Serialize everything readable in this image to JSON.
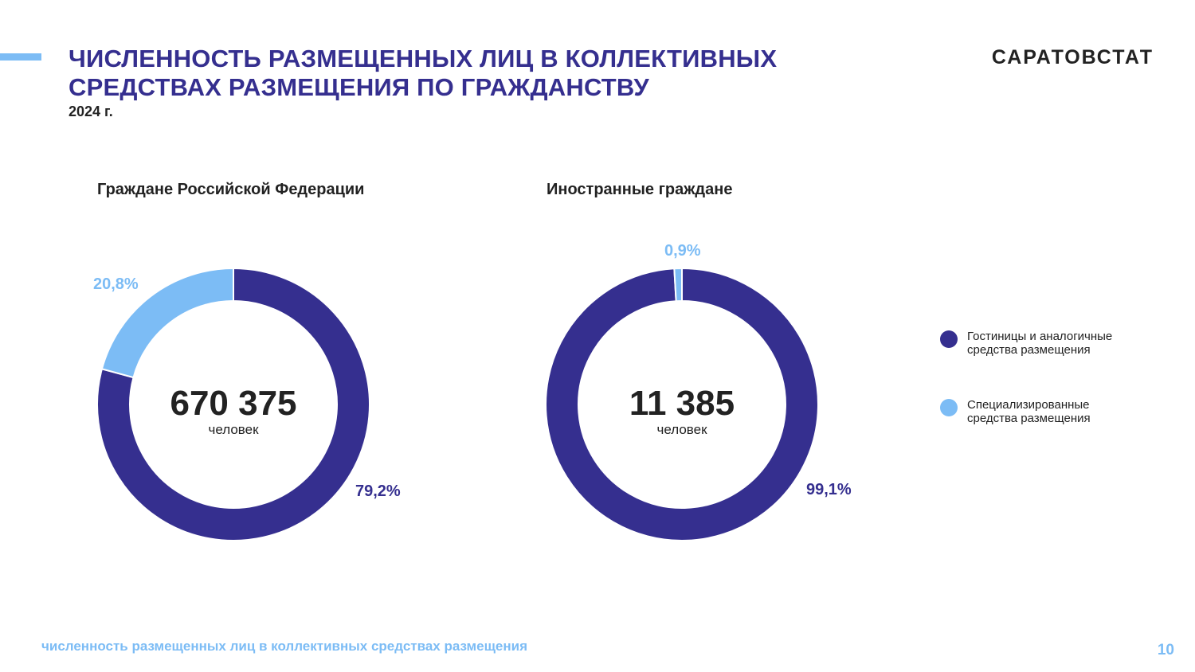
{
  "header": {
    "title_line1": "ЧИСЛЕННОСТЬ РАЗМЕЩЕННЫХ ЛИЦ В КОЛЛЕКТИВНЫХ",
    "title_line2": "СРЕДСТВАХ РАЗМЕЩЕНИЯ ПО ГРАЖДАНСТВУ",
    "year": "2024 г.",
    "brand": "САРАТОВСТАТ"
  },
  "colors": {
    "dark": "#352f8f",
    "light": "#7cbcf5"
  },
  "chart_data": [
    {
      "type": "pie",
      "donut": true,
      "title": "Граждане Российской Федерации",
      "center_value": "670 375",
      "center_unit": "человек",
      "categories": [
        "Гостиницы и аналогичные средства размещения",
        "Специализированные средства размещения"
      ],
      "values": [
        79.2,
        20.8
      ],
      "labels": [
        "79,2%",
        "20,8%"
      ],
      "colors": [
        "#352f8f",
        "#7cbcf5"
      ]
    },
    {
      "type": "pie",
      "donut": true,
      "title": "Иностранные граждане",
      "center_value": "11 385",
      "center_unit": "человек",
      "categories": [
        "Гостиницы и аналогичные средства размещения",
        "Специализированные средства размещения"
      ],
      "values": [
        99.1,
        0.9
      ],
      "labels": [
        "99,1%",
        "0,9%"
      ],
      "colors": [
        "#352f8f",
        "#7cbcf5"
      ]
    }
  ],
  "legend": [
    {
      "line1": "Гостиницы и аналогичные",
      "line2": "средства размещения",
      "color": "#352f8f"
    },
    {
      "line1": "Специализированные",
      "line2": "средства размещения",
      "color": "#7cbcf5"
    }
  ],
  "footer": {
    "note": "численность размещенных лиц в коллективных средствах размещения",
    "page": "10"
  }
}
